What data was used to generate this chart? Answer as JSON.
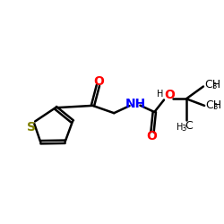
{
  "bg_color": "#ffffff",
  "bond_color": "#000000",
  "bond_lw": 1.8,
  "S_color": "#808000",
  "N_color": "#0000ff",
  "O_color": "#ff0000",
  "C_color": "#000000",
  "font_size": 9,
  "fig_size": [
    2.5,
    2.5
  ],
  "dpi": 100,
  "xlim": [
    0,
    10
  ],
  "ylim": [
    0,
    10
  ]
}
